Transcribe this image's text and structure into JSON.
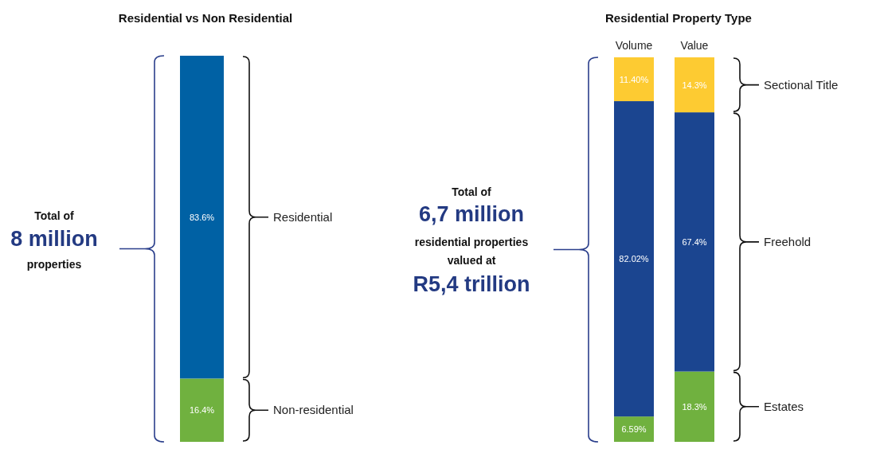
{
  "chart_data": [
    {
      "type": "bar",
      "title": "Residential vs Non Residential",
      "categories": [
        null
      ],
      "stacked": true,
      "series": [
        {
          "name": "Non-residential",
          "color": "#70b13f",
          "values": [
            16.4
          ],
          "value_labels": [
            "16.4%"
          ]
        },
        {
          "name": "Residential",
          "color": "#0061a4",
          "values": [
            83.6
          ],
          "value_labels": [
            "83.6%"
          ]
        }
      ],
      "annotations": [
        "Total of",
        "8 million",
        "properties"
      ]
    },
    {
      "type": "bar",
      "title": "Residential Property Type",
      "categories": [
        "Volume",
        "Value"
      ],
      "stacked": true,
      "series": [
        {
          "name": "Estates",
          "color": "#70b13f",
          "values": [
            6.59,
            18.3
          ],
          "value_labels": [
            "6.59%",
            "18.3%"
          ]
        },
        {
          "name": "Freehold",
          "color": "#1b4590",
          "values": [
            82.02,
            67.4
          ],
          "value_labels": [
            "82.02%",
            "67.4%"
          ]
        },
        {
          "name": "Sectional Title",
          "color": "#fdcb32",
          "values": [
            11.4,
            14.3
          ],
          "value_labels": [
            "11.40%",
            "14.3%"
          ]
        }
      ],
      "annotations": [
        "Total of",
        "6,7 million",
        "residential properties",
        "valued at",
        "R5,4 trillion"
      ]
    }
  ]
}
